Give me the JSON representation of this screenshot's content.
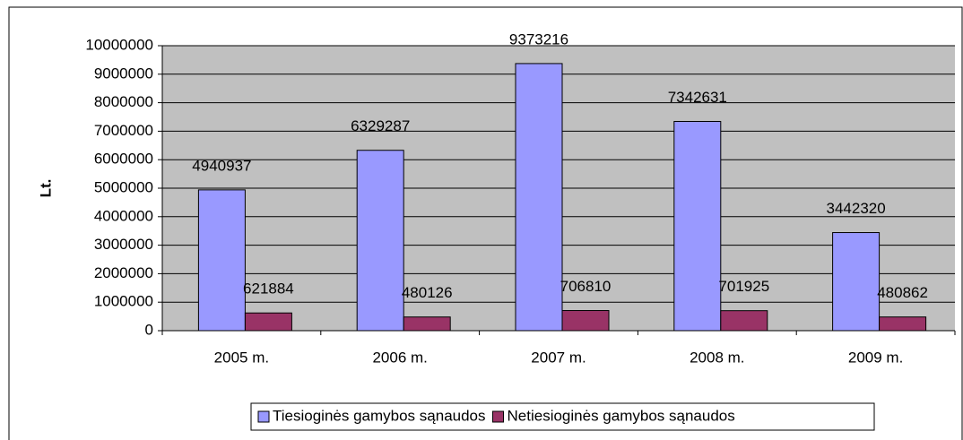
{
  "chart_data": {
    "type": "bar",
    "y_label": "Lt.",
    "categories": [
      "2005 m.",
      "2006 m.",
      "2007 m.",
      "2008 m.",
      "2009 m."
    ],
    "series": [
      {
        "name": "Tiesioginės gamybos sąnaudos",
        "color": "#9999ff",
        "values": [
          4940937,
          6329287,
          9373216,
          7342631,
          3442320
        ]
      },
      {
        "name": "Netiesioginės gamybos sąnaudos",
        "color": "#993366",
        "values": [
          621884,
          480126,
          706810,
          701925,
          480862
        ]
      }
    ],
    "ylim": [
      0,
      10000000
    ],
    "yticks": [
      0,
      1000000,
      2000000,
      3000000,
      4000000,
      5000000,
      6000000,
      7000000,
      8000000,
      9000000,
      10000000
    ],
    "grid": true,
    "legend": "bottom",
    "plot_background": "#c0c0c0"
  }
}
